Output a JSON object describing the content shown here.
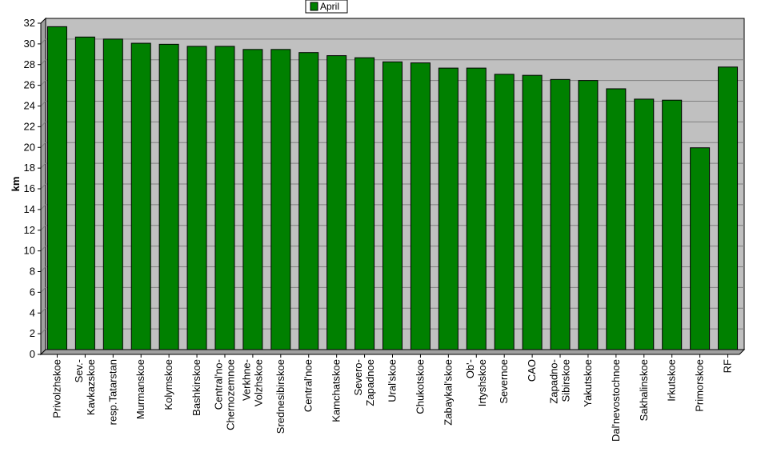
{
  "chart_data": {
    "type": "bar",
    "title": "",
    "xlabel": "",
    "ylabel": "km",
    "ylim": [
      0,
      32
    ],
    "y_ticks": [
      0,
      2,
      4,
      6,
      8,
      10,
      12,
      14,
      16,
      18,
      20,
      22,
      24,
      26,
      28,
      30,
      32
    ],
    "grid": true,
    "legend_position": "top-center",
    "categories": [
      "Privolzhskoe",
      "Sev.-Kavkazskoe",
      "resp.Tatarstan",
      "Murmanskoe",
      "Kolymskoe",
      "Bashkirskoe",
      "Central'no-Chernozemnoe",
      "Verkhne-Volzhskoe",
      "Srednesibirskoe",
      "Central'noe",
      "Kamchatskoe",
      "Severo-Zapadnoe",
      "Ural'skoe",
      "Chukotskoe",
      "Zabaykal'skoe",
      "Ob'-Irtyshskoe",
      "Severnoe",
      "CAO",
      "Zapadno-Sibirskoe",
      "Yakutskoe",
      "Dal'nevostochnoe",
      "Sakhalinskoe",
      "Irkutskoe",
      "Primorskoe",
      "RF"
    ],
    "category_lines": [
      [
        "Privolzhskoe"
      ],
      [
        "Sev.-",
        "Kavkazskoe"
      ],
      [
        "resp.Tatarstan"
      ],
      [
        "Murmanskoe"
      ],
      [
        "Kolymskoe"
      ],
      [
        "Bashkirskoe"
      ],
      [
        "Central'no-",
        "Chernozemnoe"
      ],
      [
        "Verkhne-",
        "Volzhskoe"
      ],
      [
        "Srednesibirskoe"
      ],
      [
        "Central'noe"
      ],
      [
        "Kamchatskoe"
      ],
      [
        "Severo-",
        "Zapadnoe"
      ],
      [
        "Ural'skoe"
      ],
      [
        "Chukotskoe"
      ],
      [
        "Zabaykal'skoe"
      ],
      [
        "Ob'-",
        "Irtyshskoe"
      ],
      [
        "Severnoe"
      ],
      [
        "CAO"
      ],
      [
        "Zapadno-",
        "Sibirskoe"
      ],
      [
        "Yakutskoe"
      ],
      [
        "Dal'nevostochnoe"
      ],
      [
        "Sakhalinskoe"
      ],
      [
        "Irkutskoe"
      ],
      [
        "Primorskoe"
      ],
      [
        "RF"
      ]
    ],
    "series": [
      {
        "name": "April",
        "color": "#008000",
        "values": [
          31.2,
          30.2,
          30.0,
          29.6,
          29.5,
          29.3,
          29.3,
          29.0,
          29.0,
          28.7,
          28.4,
          28.2,
          27.8,
          27.7,
          27.2,
          27.2,
          26.6,
          26.5,
          26.1,
          26.0,
          25.2,
          24.2,
          24.1,
          19.5,
          27.3
        ]
      }
    ],
    "colors": {
      "plot_background": "#c0c0c0",
      "gridline": "#808080",
      "bar_fill": "#008000",
      "bar_stroke": "#000000"
    }
  }
}
